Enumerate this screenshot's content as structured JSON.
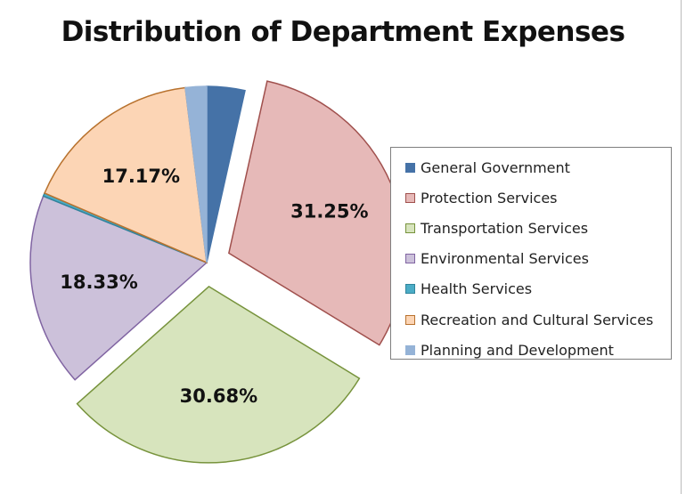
{
  "chart_data": {
    "type": "pie",
    "title": "Distribution of Department Expenses",
    "legend_position": "right",
    "slices": [
      {
        "name": "General Government",
        "value": 3.6,
        "label": "",
        "color": "#4572a7",
        "stroke": "#4572a7",
        "exploded": false
      },
      {
        "name": "Protection Services",
        "value": 31.25,
        "label": "31.25%",
        "color": "#e6b9b8",
        "stroke": "#a0504d",
        "exploded": true
      },
      {
        "name": "Transportation Services",
        "value": 30.68,
        "label": "30.68%",
        "color": "#d7e4bd",
        "stroke": "#77933c",
        "exploded": true
      },
      {
        "name": "Environmental Services",
        "value": 18.33,
        "label": "18.33%",
        "color": "#ccc1da",
        "stroke": "#8064a2",
        "exploded": false
      },
      {
        "name": "Health Services",
        "value": 0.3,
        "label": "",
        "color": "#4bacc6",
        "stroke": "#31859c",
        "exploded": false
      },
      {
        "name": "Recreation and Cultural Services",
        "value": 17.17,
        "label": "17.17%",
        "color": "#fcd5b5",
        "stroke": "#b8722e",
        "exploded": false
      },
      {
        "name": "Planning and Development",
        "value": 2.0,
        "label": "",
        "color": "#95b3d7",
        "stroke": "#95b3d7",
        "exploded": false
      }
    ]
  }
}
